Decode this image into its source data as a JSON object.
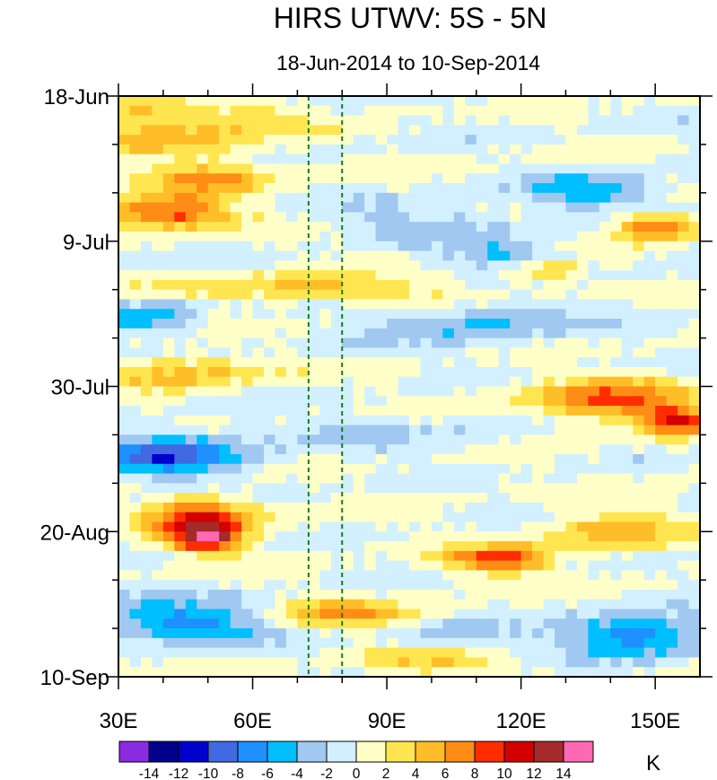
{
  "chart_data": {
    "type": "heatmap",
    "title": "HIRS UTWV: 5S - 5N",
    "subtitle": "18-Jun-2014 to 10-Sep-2014",
    "x_axis": {
      "range_lon": [
        30,
        160
      ],
      "ticks": [
        30,
        60,
        90,
        120,
        150
      ],
      "tick_labels": [
        "30E",
        "60E",
        "90E",
        "120E",
        "150E"
      ]
    },
    "y_axis": {
      "range_days": [
        0,
        84
      ],
      "ticks": [
        0,
        21,
        42,
        63,
        84
      ],
      "tick_labels": [
        "18-Jun",
        "9-Jul",
        "30-Jul",
        "20-Aug",
        "10-Sep"
      ]
    },
    "reference_lines_lon": [
      72.5,
      80
    ],
    "colorbar": {
      "unit": "K",
      "levels": [
        -14,
        -12,
        -10,
        -8,
        -6,
        -4,
        -2,
        0,
        2,
        4,
        6,
        8,
        10,
        12,
        14
      ],
      "level_labels": [
        "-14",
        "-12",
        "-10",
        "-8",
        "-6",
        "-4",
        "-2",
        "0",
        "2",
        "4",
        "6",
        "8",
        "10",
        "12",
        "14"
      ],
      "colors": [
        "#8a2be2",
        "#00008b",
        "#0000cd",
        "#4169e1",
        "#1e90ff",
        "#00bfff",
        "#a0c8f0",
        "#d2f0ff",
        "#ffffc8",
        "#ffe650",
        "#ffbe28",
        "#ff8c14",
        "#ff2d00",
        "#d20000",
        "#a52a2a",
        "#ff69b4"
      ]
    },
    "field_features": [
      {
        "lon": 40,
        "day": 6,
        "value": 5,
        "spread_lon": 20,
        "spread_day": 2.5
      },
      {
        "lon": 50,
        "day": 12,
        "value": 6,
        "spread_lon": 14,
        "spread_day": 3
      },
      {
        "lon": 40,
        "day": 17,
        "value": 9,
        "spread_lon": 14,
        "spread_day": 2.2
      },
      {
        "lon": 35,
        "day": 2,
        "value": 5,
        "spread_lon": 10,
        "spread_day": 2
      },
      {
        "lon": 58,
        "day": 3,
        "value": 3,
        "spread_lon": 14,
        "spread_day": 2
      },
      {
        "lon": 150,
        "day": 19,
        "value": 9,
        "spread_lon": 9,
        "spread_day": 2
      },
      {
        "lon": 118,
        "day": 23,
        "value": -5,
        "spread_lon": 14,
        "spread_day": 2
      },
      {
        "lon": 135,
        "day": 14,
        "value": -5,
        "spread_lon": 15,
        "spread_day": 2.5
      },
      {
        "lon": 100,
        "day": 18,
        "value": -3,
        "spread_lon": 20,
        "spread_day": 3
      },
      {
        "lon": 125,
        "day": 25,
        "value": 5,
        "spread_lon": 8,
        "spread_day": 2
      },
      {
        "lon": 75,
        "day": 28,
        "value": 5,
        "spread_lon": 28,
        "spread_day": 2
      },
      {
        "lon": 38,
        "day": 32,
        "value": -5,
        "spread_lon": 10,
        "spread_day": 2.5
      },
      {
        "lon": 110,
        "day": 33,
        "value": -4,
        "spread_lon": 25,
        "spread_day": 3
      },
      {
        "lon": 45,
        "day": 40,
        "value": 5,
        "spread_lon": 16,
        "spread_day": 2.5
      },
      {
        "lon": 140,
        "day": 44,
        "value": 8,
        "spread_lon": 18,
        "spread_day": 3
      },
      {
        "lon": 155,
        "day": 47,
        "value": 9,
        "spread_lon": 8,
        "spread_day": 2
      },
      {
        "lon": 42,
        "day": 52,
        "value": -9,
        "spread_lon": 16,
        "spread_day": 3
      },
      {
        "lon": 90,
        "day": 49,
        "value": -2,
        "spread_lon": 25,
        "spread_day": 3
      },
      {
        "lon": 48,
        "day": 61,
        "value": 9,
        "spread_lon": 12,
        "spread_day": 3
      },
      {
        "lon": 50,
        "day": 64,
        "value": 11,
        "spread_lon": 8,
        "spread_day": 2
      },
      {
        "lon": 115,
        "day": 67,
        "value": 9,
        "spread_lon": 12,
        "spread_day": 2
      },
      {
        "lon": 140,
        "day": 63,
        "value": 5,
        "spread_lon": 15,
        "spread_day": 3
      },
      {
        "lon": 80,
        "day": 75,
        "value": 6,
        "spread_lon": 18,
        "spread_day": 2
      },
      {
        "lon": 45,
        "day": 76,
        "value": -7,
        "spread_lon": 20,
        "spread_day": 3
      },
      {
        "lon": 145,
        "day": 78,
        "value": -8,
        "spread_lon": 15,
        "spread_day": 3
      },
      {
        "lon": 105,
        "day": 78,
        "value": -3,
        "spread_lon": 15,
        "spread_day": 2
      },
      {
        "lon": 100,
        "day": 82,
        "value": 4,
        "spread_lon": 18,
        "spread_day": 1.8
      }
    ]
  }
}
